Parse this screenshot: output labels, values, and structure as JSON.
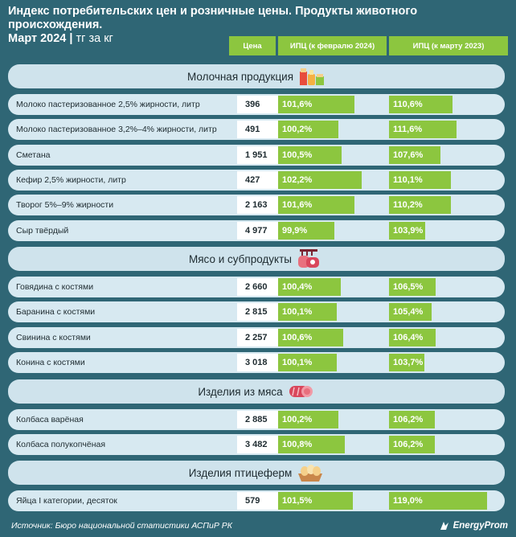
{
  "title_line1": "Индекс потребительских цен и розничные цены. Продукты животного происхождения.",
  "title_line2": "Март 2024",
  "title_unit": "тг за кг",
  "columns": {
    "price": "Цена",
    "cpi_feb": "ИПЦ (к февралю 2024)",
    "cpi_mar": "ИПЦ (к марту 2023)"
  },
  "source": "Источник: Бюро национальной статистики АСПиР РК",
  "brand": "EnergyProm",
  "colors": {
    "background": "#2f6675",
    "accent": "#8cc63f",
    "row": "#d7e9f1",
    "section": "#cfe3ec"
  },
  "chart_data": {
    "type": "table",
    "sections": [
      {
        "name": "Молочная продукция",
        "icon": "milk-products-icon",
        "rows": [
          {
            "name": "Молоко пастеризованное 2,5% жирности, литр",
            "price": "396",
            "cpi_feb": "101,6%",
            "cpi_feb_value": 101.6,
            "cpi_mar": "110,6%",
            "cpi_mar_value": 110.6
          },
          {
            "name": "Молоко пастеризованное 3,2%–4% жирности, литр",
            "price": "491",
            "cpi_feb": "100,2%",
            "cpi_feb_value": 100.2,
            "cpi_mar": "111,6%",
            "cpi_mar_value": 111.6
          },
          {
            "name": "Сметана",
            "price": "1 951",
            "cpi_feb": "100,5%",
            "cpi_feb_value": 100.5,
            "cpi_mar": "107,6%",
            "cpi_mar_value": 107.6
          },
          {
            "name": "Кефир 2,5% жирности, литр",
            "price": "427",
            "cpi_feb": "102,2%",
            "cpi_feb_value": 102.2,
            "cpi_mar": "110,1%",
            "cpi_mar_value": 110.1
          },
          {
            "name": "Творог 5%–9% жирности",
            "price": "2 163",
            "cpi_feb": "101,6%",
            "cpi_feb_value": 101.6,
            "cpi_mar": "110,2%",
            "cpi_mar_value": 110.2
          },
          {
            "name": "Сыр твёрдый",
            "price": "4 977",
            "cpi_feb": "99,9%",
            "cpi_feb_value": 99.9,
            "cpi_mar": "103,9%",
            "cpi_mar_value": 103.9
          }
        ]
      },
      {
        "name": "Мясо и субпродукты",
        "icon": "meat-icon",
        "rows": [
          {
            "name": "Говядина с костями",
            "price": "2 660",
            "cpi_feb": "100,4%",
            "cpi_feb_value": 100.4,
            "cpi_mar": "106,5%",
            "cpi_mar_value": 106.5
          },
          {
            "name": "Баранина с костями",
            "price": "2 815",
            "cpi_feb": "100,1%",
            "cpi_feb_value": 100.1,
            "cpi_mar": "105,4%",
            "cpi_mar_value": 105.4
          },
          {
            "name": "Свинина с костями",
            "price": "2 257",
            "cpi_feb": "100,6%",
            "cpi_feb_value": 100.6,
            "cpi_mar": "106,4%",
            "cpi_mar_value": 106.4
          },
          {
            "name": "Конина с костями",
            "price": "3 018",
            "cpi_feb": "100,1%",
            "cpi_feb_value": 100.1,
            "cpi_mar": "103,7%",
            "cpi_mar_value": 103.7
          }
        ]
      },
      {
        "name": "Изделия из мяса",
        "icon": "sausage-icon",
        "rows": [
          {
            "name": "Колбаса варёная",
            "price": "2 885",
            "cpi_feb": "100,2%",
            "cpi_feb_value": 100.2,
            "cpi_mar": "106,2%",
            "cpi_mar_value": 106.2
          },
          {
            "name": "Колбаса полукопчёная",
            "price": "3 482",
            "cpi_feb": "100,8%",
            "cpi_feb_value": 100.8,
            "cpi_mar": "106,2%",
            "cpi_mar_value": 106.2
          }
        ]
      },
      {
        "name": "Изделия птицеферм",
        "icon": "eggs-icon",
        "rows": [
          {
            "name": "Яйца I категории, десяток",
            "price": "579",
            "cpi_feb": "101,5%",
            "cpi_feb_value": 101.5,
            "cpi_mar": "119,0%",
            "cpi_mar_value": 119.0
          }
        ]
      }
    ]
  }
}
